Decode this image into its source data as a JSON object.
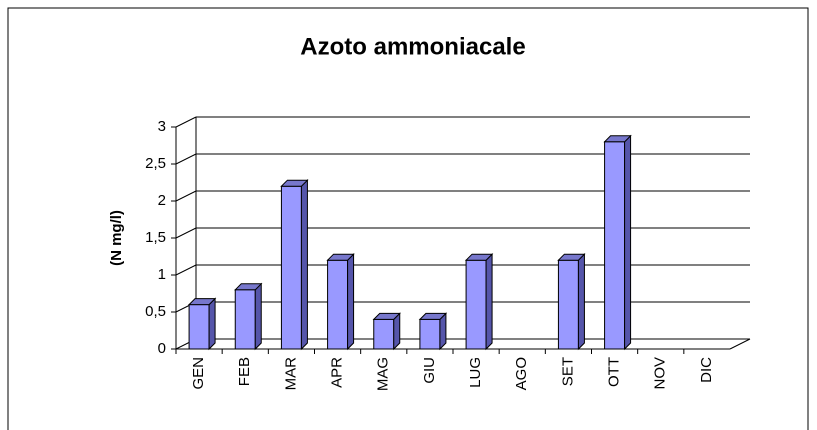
{
  "chart_data": {
    "type": "bar",
    "title": "Azoto ammoniacale",
    "y_label": "(N mg/l)",
    "categories": [
      "GEN",
      "FEB",
      "MAR",
      "APR",
      "MAG",
      "GIU",
      "LUG",
      "AGO",
      "SET",
      "OTT",
      "NOV",
      "DIC"
    ],
    "values": [
      0.6,
      0.8,
      2.2,
      1.2,
      0.4,
      0.4,
      1.2,
      null,
      1.2,
      2.8,
      null,
      null
    ],
    "color": "#9999ff",
    "ylim": [
      0,
      3
    ],
    "yticks": [
      0,
      {
        "value": 0.5,
        "label": "0,5"
      },
      1,
      {
        "value": 1.5,
        "label": "1,5"
      },
      2,
      {
        "value": 2.5,
        "label": "2,5"
      },
      3
    ],
    "grid": true
  }
}
